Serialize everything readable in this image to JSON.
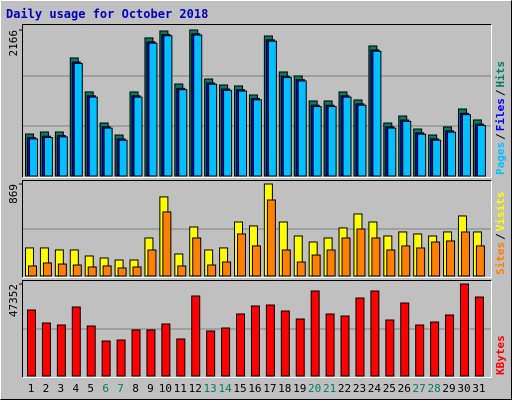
{
  "chart_data": [
    {
      "type": "bar",
      "title": "Daily usage for October 2018",
      "legend_separator": "/",
      "ylim": [
        0,
        2225
      ],
      "yticks": [
        2166
      ],
      "series": [
        {
          "name": "Hits",
          "color": "#00805c",
          "values": [
            623,
            653,
            653,
            1751,
            1247,
            786,
            608,
            1247,
            2048,
            2151,
            1365,
            2166,
            1439,
            1350,
            1336,
            1202,
            2077,
            1543,
            1484,
            1113,
            1113,
            1247,
            1128,
            1929,
            786,
            890,
            697,
            608,
            727,
            994,
            831
          ]
        },
        {
          "name": "Files",
          "color": "#0000ff",
          "values": [
            570,
            590,
            600,
            1690,
            1190,
            730,
            550,
            1190,
            1990,
            2100,
            1300,
            2110,
            1380,
            1290,
            1280,
            1150,
            2020,
            1480,
            1430,
            1050,
            1050,
            1190,
            1070,
            1870,
            730,
            830,
            640,
            550,
            670,
            930,
            770
          ]
        },
        {
          "name": "Pages",
          "color": "#00c0ff",
          "values": [
            550,
            570,
            580,
            1670,
            1170,
            710,
            530,
            1170,
            1970,
            2080,
            1280,
            2090,
            1360,
            1270,
            1260,
            1130,
            2000,
            1460,
            1410,
            1030,
            1030,
            1170,
            1050,
            1850,
            710,
            810,
            620,
            530,
            650,
            910,
            750
          ]
        }
      ]
    },
    {
      "type": "bar",
      "legend_separator": "/",
      "ylim": [
        0,
        888
      ],
      "yticks": [
        869
      ],
      "series": [
        {
          "name": "Visits",
          "color": "#ffff00",
          "values": [
            265,
            265,
            246,
            246,
            189,
            170,
            151,
            151,
            359,
            747,
            208,
            463,
            246,
            265,
            510,
            473,
            869,
            510,
            378,
            321,
            359,
            454,
            586,
            510,
            378,
            416,
            397,
            378,
            416,
            567,
            416
          ]
        },
        {
          "name": "Sites",
          "color": "#ff8000",
          "values": [
            95,
            123,
            113,
            104,
            85,
            95,
            76,
            85,
            246,
            605,
            95,
            359,
            104,
            132,
            397,
            284,
            718,
            246,
            132,
            198,
            246,
            359,
            444,
            359,
            246,
            284,
            265,
            321,
            331,
            416,
            284
          ]
        }
      ]
    },
    {
      "type": "bar",
      "ylim": [
        0,
        48381
      ],
      "yticks": [
        47352
      ],
      "categories": [
        "1",
        "2",
        "3",
        "4",
        "5",
        "6",
        "7",
        "8",
        "9",
        "10",
        "11",
        "12",
        "13",
        "14",
        "15",
        "16",
        "17",
        "18",
        "19",
        "20",
        "21",
        "22",
        "23",
        "24",
        "25",
        "26",
        "27",
        "28",
        "29",
        "30",
        "31"
      ],
      "label_colors": [
        "#000000",
        "#000000",
        "#000000",
        "#000000",
        "#000000",
        "#00805c",
        "#00805c",
        "#000000",
        "#000000",
        "#000000",
        "#000000",
        "#000000",
        "#00805c",
        "#00805c",
        "#000000",
        "#000000",
        "#000000",
        "#000000",
        "#000000",
        "#00805c",
        "#00805c",
        "#000000",
        "#000000",
        "#000000",
        "#000000",
        "#000000",
        "#00805c",
        "#00805c",
        "#000000",
        "#000000",
        "#000000"
      ],
      "series": [
        {
          "name": "KBytes",
          "color": "#ff0000",
          "values": [
            33970,
            27279,
            26250,
            35514,
            25735,
            18015,
            18529,
            23676,
            23676,
            26764,
            19044,
            41176,
            23162,
            24706,
            31911,
            36029,
            36544,
            33456,
            29338,
            43750,
            31911,
            30882,
            40147,
            43750,
            28823,
            37573,
            26250,
            27794,
            31397,
            47352,
            40661
          ]
        }
      ]
    }
  ]
}
